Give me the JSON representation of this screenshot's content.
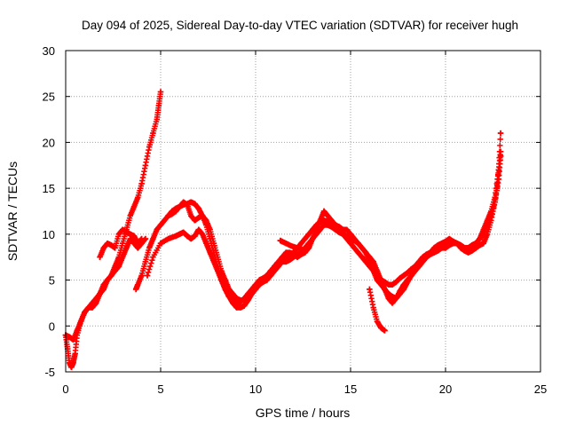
{
  "chart_data": {
    "type": "scatter",
    "title": "Day 094 of 2025, Sidereal Day-to-day VTEC variation (SDTVAR) for receiver hugh",
    "xlabel": "GPS time / hours",
    "ylabel": "SDTVAR / TECUs",
    "xlim": [
      0,
      25
    ],
    "ylim": [
      -5,
      30
    ],
    "xticks": [
      "0",
      "5",
      "10",
      "15",
      "20",
      "25"
    ],
    "yticks": [
      "-5",
      "0",
      "5",
      "10",
      "15",
      "20",
      "25",
      "30"
    ],
    "grid": true,
    "marker": "plus",
    "color": "#ff0000",
    "series": [
      {
        "x": [
          0.0,
          0.1,
          0.2,
          0.3,
          0.4,
          0.5,
          0.6,
          0.8,
          1.0,
          1.2,
          1.4,
          1.6,
          1.8,
          2.0,
          2.2,
          2.4,
          2.6,
          2.8,
          3.0,
          3.2,
          3.4,
          3.6,
          3.8,
          4.0,
          4.2,
          4.4,
          4.6,
          4.8,
          4.9,
          5.0
        ],
        "y": [
          -1.0,
          -2.5,
          -4.0,
          -4.5,
          -4.0,
          -3.0,
          -1.0,
          0.5,
          1.5,
          2.0,
          2.5,
          3.0,
          3.5,
          4.0,
          5.0,
          5.5,
          6.5,
          7.5,
          9.0,
          10.5,
          12.0,
          13.0,
          14.0,
          15.5,
          17.5,
          19.5,
          21.0,
          22.5,
          24.0,
          25.5
        ]
      },
      {
        "x": [
          0.0,
          0.2,
          0.4,
          0.6,
          0.8,
          1.0,
          1.2,
          1.4,
          1.6,
          1.8,
          2.0,
          2.2,
          2.4,
          2.6,
          2.8,
          3.0,
          3.2,
          3.4,
          3.6,
          3.8,
          4.0,
          4.2
        ],
        "y": [
          -1.0,
          -1.2,
          -1.5,
          -0.5,
          0.5,
          1.5,
          2.0,
          2.0,
          2.5,
          3.5,
          4.5,
          5.0,
          5.5,
          6.0,
          6.5,
          7.5,
          8.5,
          9.5,
          9.0,
          8.5,
          9.0,
          9.5
        ]
      },
      {
        "x": [
          1.8,
          2.0,
          2.2,
          2.4,
          2.6,
          2.8,
          3.0,
          3.2,
          3.4,
          3.6,
          3.8,
          4.0
        ],
        "y": [
          7.5,
          8.5,
          9.0,
          8.8,
          8.5,
          10.0,
          10.5,
          10.2,
          10.0,
          9.8,
          9.0,
          9.5
        ]
      },
      {
        "x": [
          3.7,
          3.8,
          4.0,
          4.2,
          4.4,
          4.6,
          4.8,
          5.0,
          5.2,
          5.4,
          5.6,
          5.8,
          6.0,
          6.2,
          6.4,
          6.6,
          6.8,
          7.0,
          7.2,
          7.4,
          7.6,
          7.8,
          8.0,
          8.2,
          8.4,
          8.6,
          8.8,
          9.0,
          9.2,
          9.4,
          9.6,
          9.8,
          10.0,
          10.2,
          10.4,
          10.6,
          10.8,
          11.0,
          11.2,
          11.4,
          11.6,
          11.8,
          12.0,
          12.2,
          12.4,
          12.6,
          12.8,
          13.0,
          13.2,
          13.4,
          13.6,
          13.8,
          14.0,
          14.2,
          14.4,
          14.6,
          14.8,
          15.0,
          15.2,
          15.4,
          15.6,
          15.8,
          16.0,
          16.2,
          16.4,
          16.6,
          16.8,
          17.0,
          17.2,
          17.4,
          17.6,
          17.8,
          18.0,
          18.2,
          18.4,
          18.6,
          18.8,
          19.0,
          19.2,
          19.4,
          19.6,
          19.8,
          20.0,
          20.2,
          20.4,
          20.6,
          20.8,
          21.0,
          21.2,
          21.4,
          21.6,
          21.8,
          22.0,
          22.2,
          22.4,
          22.6,
          22.7,
          22.8,
          22.9
        ],
        "y": [
          4.0,
          4.5,
          5.5,
          7.0,
          8.5,
          9.5,
          10.5,
          11.0,
          11.5,
          12.0,
          12.5,
          12.8,
          13.0,
          13.2,
          13.3,
          13.5,
          13.3,
          12.8,
          12.0,
          11.0,
          9.5,
          8.0,
          6.5,
          5.0,
          4.0,
          3.2,
          2.8,
          2.5,
          2.6,
          3.0,
          3.5,
          4.0,
          4.5,
          5.0,
          5.2,
          5.5,
          6.0,
          6.5,
          7.0,
          7.3,
          7.5,
          7.8,
          8.0,
          8.5,
          9.0,
          9.5,
          10.0,
          10.5,
          11.0,
          11.3,
          11.5,
          11.4,
          11.2,
          11.0,
          10.5,
          10.0,
          9.5,
          9.0,
          8.5,
          8.0,
          7.5,
          7.0,
          6.5,
          6.0,
          5.5,
          5.0,
          4.8,
          4.5,
          4.5,
          4.8,
          5.2,
          5.5,
          5.8,
          6.2,
          6.5,
          7.0,
          7.5,
          7.8,
          8.0,
          8.2,
          8.5,
          8.8,
          9.0,
          9.0,
          9.2,
          9.0,
          8.8,
          8.5,
          8.5,
          8.8,
          9.0,
          9.5,
          10.0,
          11.0,
          12.0,
          13.5,
          15.0,
          17.0,
          19.0
        ]
      },
      {
        "x": [
          4.3,
          4.6,
          5.0,
          5.4,
          5.8,
          6.0,
          6.2,
          6.4,
          6.6,
          6.8,
          7.0,
          7.2,
          7.4,
          7.6,
          7.8,
          8.0,
          8.2,
          8.4,
          8.6,
          8.8,
          9.0,
          9.2,
          9.4,
          9.6,
          9.8,
          10.0,
          10.2,
          10.4,
          10.6,
          10.8,
          11.0,
          11.2,
          11.4,
          11.6,
          11.8,
          12.0,
          12.2,
          12.4,
          12.6,
          12.8,
          13.0,
          13.2,
          13.4,
          13.6,
          13.8,
          14.0,
          14.2,
          14.4,
          14.6,
          14.8,
          15.0,
          15.2,
          15.4,
          15.6,
          15.8,
          16.0,
          16.2,
          16.4,
          16.6,
          16.8,
          17.0,
          17.2,
          17.4,
          17.6,
          17.8,
          18.0,
          18.2,
          18.4,
          18.6,
          18.8,
          19.0,
          19.2,
          19.4,
          19.6,
          19.8,
          20.0,
          20.2,
          20.4,
          20.6,
          20.8,
          21.0,
          21.2,
          21.4,
          21.6,
          21.8,
          22.0,
          22.2,
          22.4,
          22.6,
          22.8,
          22.9
        ],
        "y": [
          5.5,
          7.5,
          9.0,
          9.5,
          9.8,
          10.0,
          10.2,
          9.8,
          9.5,
          9.8,
          10.5,
          10.0,
          9.0,
          8.0,
          7.0,
          6.0,
          5.0,
          4.0,
          3.2,
          2.5,
          2.0,
          2.0,
          2.2,
          2.8,
          3.5,
          4.2,
          4.5,
          4.8,
          5.0,
          5.5,
          6.0,
          6.5,
          7.0,
          7.0,
          7.2,
          7.5,
          7.8,
          8.0,
          8.5,
          9.0,
          9.5,
          10.0,
          10.5,
          11.0,
          11.0,
          10.8,
          10.5,
          10.2,
          10.0,
          9.8,
          9.5,
          9.3,
          9.0,
          8.5,
          8.0,
          7.0,
          6.0,
          5.0,
          4.5,
          4.0,
          3.5,
          3.2,
          3.0,
          3.5,
          4.0,
          4.8,
          5.5,
          6.0,
          6.5,
          7.0,
          7.5,
          7.8,
          8.0,
          8.2,
          8.5,
          8.5,
          8.8,
          9.0,
          9.0,
          8.5,
          8.2,
          8.0,
          8.2,
          8.5,
          8.8,
          9.0,
          10.0,
          11.5,
          13.5,
          16.0,
          18.5
        ]
      },
      {
        "x": [
          5.4,
          5.6,
          5.8,
          6.0,
          6.2,
          6.4,
          6.6,
          6.8,
          7.0,
          7.2,
          7.4,
          7.6,
          7.8,
          8.0,
          8.2,
          8.4,
          8.6,
          8.8,
          9.0,
          9.2,
          9.4,
          9.6,
          9.8,
          10.0,
          10.2,
          10.4,
          10.6,
          10.8,
          11.0,
          11.2,
          11.4,
          11.6,
          11.8,
          12.0,
          12.2,
          12.4,
          12.6,
          12.8,
          13.0,
          13.2,
          13.4,
          13.6,
          13.8,
          14.0,
          14.2,
          14.4,
          14.6,
          14.8,
          15.0,
          15.2,
          15.4,
          15.6,
          15.8,
          16.0,
          16.2,
          16.4,
          16.6,
          16.8,
          17.0,
          17.2,
          17.4,
          17.6,
          17.8,
          18.0,
          18.2,
          18.4,
          18.6,
          18.8,
          19.0,
          19.2,
          19.4,
          19.6,
          19.8,
          20.0,
          20.2,
          20.4,
          20.6,
          20.8,
          21.0,
          21.2,
          21.4,
          21.6,
          21.8,
          22.0,
          22.2,
          22.4,
          22.6,
          22.8,
          22.9
        ],
        "y": [
          12.0,
          12.2,
          12.5,
          13.0,
          13.5,
          13.2,
          12.0,
          11.5,
          11.8,
          12.0,
          11.5,
          10.5,
          9.0,
          7.5,
          6.0,
          5.0,
          4.0,
          3.5,
          3.0,
          2.8,
          2.8,
          3.0,
          3.5,
          4.0,
          4.5,
          5.0,
          5.5,
          6.0,
          6.5,
          7.0,
          7.5,
          8.0,
          8.0,
          7.8,
          7.5,
          7.8,
          8.0,
          8.5,
          9.5,
          10.5,
          11.5,
          12.5,
          12.0,
          11.5,
          11.0,
          10.8,
          10.5,
          10.5,
          10.0,
          9.5,
          9.0,
          8.5,
          8.0,
          7.5,
          7.0,
          6.0,
          5.0,
          4.0,
          3.0,
          2.5,
          3.0,
          3.8,
          4.5,
          5.0,
          5.5,
          6.0,
          6.5,
          7.0,
          7.5,
          8.0,
          8.5,
          8.8,
          9.0,
          9.2,
          9.5,
          9.2,
          9.0,
          8.8,
          8.5,
          8.5,
          8.8,
          9.0,
          9.5,
          10.5,
          11.5,
          12.5,
          14.0,
          17.0,
          21.0
        ]
      },
      {
        "x": [
          16.0,
          16.2,
          16.4,
          16.6,
          16.8
        ],
        "y": [
          4.0,
          2.0,
          0.5,
          -0.2,
          -0.5
        ]
      },
      {
        "x": [
          11.3,
          11.6,
          11.9,
          12.2,
          12.5,
          12.8
        ],
        "y": [
          9.3,
          9.0,
          8.7,
          8.5,
          8.3,
          8.6
        ]
      }
    ]
  }
}
